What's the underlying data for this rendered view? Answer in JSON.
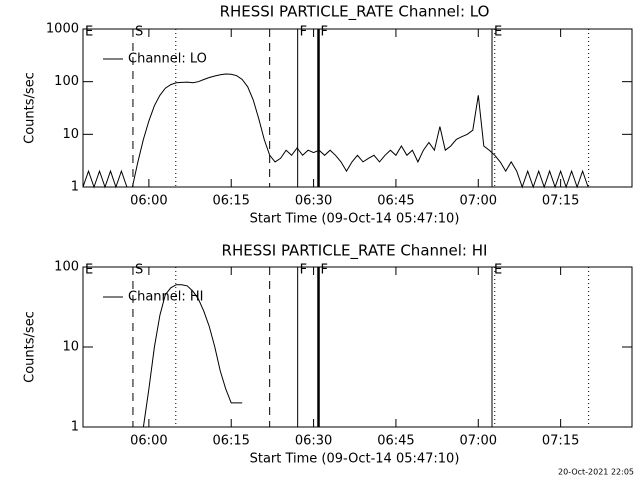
{
  "chart_data": [
    {
      "type": "line",
      "title": "RHESSI PARTICLE_RATE Channel: LO",
      "xlabel": "Start Time (09-Oct-14 05:47:10)",
      "ylabel": "Counts/sec",
      "log_y": true,
      "xlim": [
        348,
        448
      ],
      "ylim": [
        1,
        1000
      ],
      "xticks": [
        {
          "value": 360,
          "label": "06:00"
        },
        {
          "value": 375,
          "label": "06:15"
        },
        {
          "value": 390,
          "label": "06:30"
        },
        {
          "value": 405,
          "label": "06:45"
        },
        {
          "value": 420,
          "label": "07:00"
        },
        {
          "value": 435,
          "label": "07:15"
        }
      ],
      "yticks": [
        1,
        10,
        100,
        1000
      ],
      "markers": [
        {
          "x": 357.1,
          "style": "dashed"
        },
        {
          "x": 364.9,
          "style": "dotted"
        },
        {
          "x": 382,
          "style": "dashed"
        },
        {
          "x": 387.1,
          "style": "solid"
        },
        {
          "x": 390.9,
          "style": "thick"
        },
        {
          "x": 422.5,
          "style": "solid"
        },
        {
          "x": 423,
          "style": "dotted"
        },
        {
          "x": 440.1,
          "style": "dotted"
        }
      ],
      "annotations": [
        {
          "x": 348,
          "text": "E"
        },
        {
          "x": 357.1,
          "text": "S"
        },
        {
          "x": 387.1,
          "text": "F"
        },
        {
          "x": 390.9,
          "text": "F"
        },
        {
          "x": 422.5,
          "text": "E"
        }
      ],
      "x": [
        348,
        349,
        350,
        351,
        352,
        353,
        354,
        355,
        356,
        357,
        358,
        359,
        360,
        361,
        362,
        363,
        364,
        365,
        366,
        367,
        368,
        369,
        370,
        371,
        372,
        373,
        374,
        375,
        376,
        377,
        378,
        379,
        380,
        381,
        382,
        383,
        384,
        385,
        386,
        387,
        388,
        389,
        390,
        391,
        392,
        393,
        394,
        395,
        396,
        397,
        398,
        399,
        400,
        401,
        402,
        403,
        404,
        405,
        406,
        407,
        408,
        409,
        410,
        411,
        412,
        413,
        414,
        415,
        416,
        417,
        418,
        419,
        420,
        421,
        422,
        423,
        424,
        425,
        426,
        427,
        428,
        429,
        430,
        431,
        432,
        433,
        434,
        435,
        436,
        437,
        438,
        439,
        440
      ],
      "series": [
        {
          "name": "Channel: LO",
          "color": "#000000",
          "values": [
            1,
            2,
            1,
            2,
            1,
            2,
            1,
            2,
            1,
            1,
            3,
            8,
            18,
            35,
            55,
            75,
            88,
            95,
            97,
            98,
            95,
            100,
            110,
            120,
            128,
            135,
            140,
            138,
            130,
            110,
            80,
            45,
            20,
            8,
            4,
            3,
            3.5,
            5,
            4,
            5.5,
            4,
            5,
            4.5,
            5,
            4,
            5,
            4,
            3,
            2,
            3,
            4,
            3,
            3.5,
            4,
            3,
            4,
            5,
            4,
            6,
            4,
            5,
            3,
            5,
            7,
            5,
            14,
            5,
            6,
            8,
            9,
            10,
            12,
            55,
            6,
            5,
            4,
            3,
            2,
            3,
            2,
            1,
            2,
            1,
            2,
            1,
            2,
            1,
            2,
            1,
            2,
            1,
            2,
            1
          ]
        }
      ]
    },
    {
      "type": "line",
      "title": "RHESSI PARTICLE_RATE Channel: HI",
      "xlabel": "Start Time (09-Oct-14 05:47:10)",
      "ylabel": "Counts/sec",
      "log_y": true,
      "xlim": [
        348,
        448
      ],
      "ylim": [
        1,
        100
      ],
      "xticks": [
        {
          "value": 360,
          "label": "06:00"
        },
        {
          "value": 375,
          "label": "06:15"
        },
        {
          "value": 390,
          "label": "06:30"
        },
        {
          "value": 405,
          "label": "06:45"
        },
        {
          "value": 420,
          "label": "07:00"
        },
        {
          "value": 435,
          "label": "07:15"
        }
      ],
      "yticks": [
        1,
        10,
        100
      ],
      "markers": [
        {
          "x": 357.1,
          "style": "dashed"
        },
        {
          "x": 364.9,
          "style": "dotted"
        },
        {
          "x": 382,
          "style": "dashed"
        },
        {
          "x": 387.1,
          "style": "solid"
        },
        {
          "x": 390.9,
          "style": "thick"
        },
        {
          "x": 422.5,
          "style": "solid"
        },
        {
          "x": 423,
          "style": "dotted"
        },
        {
          "x": 440.1,
          "style": "dotted"
        }
      ],
      "annotations": [
        {
          "x": 348,
          "text": "E"
        },
        {
          "x": 357.1,
          "text": "S"
        },
        {
          "x": 387.1,
          "text": "F"
        },
        {
          "x": 390.9,
          "text": "F"
        },
        {
          "x": 422.5,
          "text": "E"
        }
      ],
      "x": [
        359,
        360,
        361,
        362,
        363,
        364,
        365,
        366,
        367,
        368,
        369,
        370,
        371,
        372,
        373,
        374,
        375,
        376,
        377
      ],
      "series": [
        {
          "name": "Channel: HI",
          "color": "#000000",
          "values": [
            1,
            3,
            10,
            25,
            45,
            55,
            60,
            60,
            58,
            50,
            40,
            28,
            18,
            10,
            5,
            3,
            2,
            2,
            2
          ]
        }
      ]
    }
  ],
  "footer": "20-Oct-2021 22:05"
}
